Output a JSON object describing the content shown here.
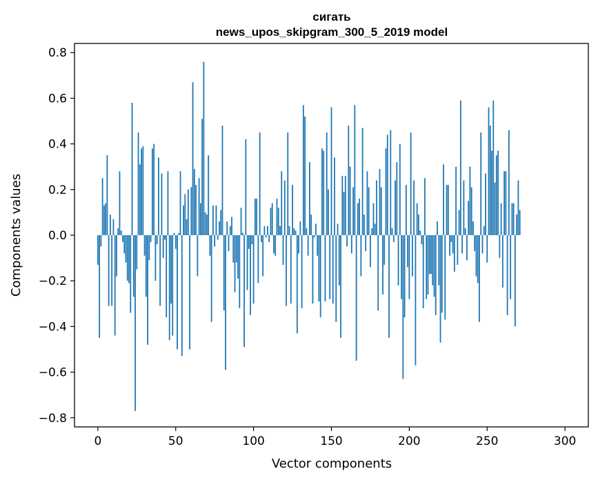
{
  "chart_data": {
    "type": "bar",
    "title": "сигать",
    "subtitle": "news_upos_skipgram_300_5_2019 model",
    "xlabel": "Vector components",
    "ylabel": "Components values",
    "xlim": [
      -15,
      315
    ],
    "ylim": [
      -0.84,
      0.84
    ],
    "xticks": [
      0,
      50,
      100,
      150,
      200,
      250,
      300
    ],
    "yticks": [
      -0.8,
      -0.6,
      -0.4,
      -0.2,
      0.0,
      0.2,
      0.4,
      0.6,
      0.8
    ],
    "ytick_labels": [
      "−0.8",
      "−0.6",
      "−0.4",
      "−0.2",
      "0.0",
      "0.2",
      "0.4",
      "0.6",
      "0.8"
    ],
    "grid": false,
    "bar_color": "#1f77b4",
    "x_start": 0,
    "values": [
      -0.13,
      -0.45,
      -0.05,
      0.25,
      0.13,
      0.14,
      0.35,
      -0.31,
      0.09,
      -0.31,
      0.07,
      -0.44,
      -0.18,
      0.03,
      0.28,
      0.02,
      -0.03,
      -0.08,
      -0.12,
      -0.2,
      -0.21,
      -0.34,
      0.58,
      -0.27,
      -0.77,
      -0.15,
      0.45,
      0.31,
      0.38,
      0.39,
      -0.09,
      -0.27,
      -0.48,
      -0.11,
      -0.03,
      0.38,
      0.4,
      -0.2,
      -0.04,
      0.34,
      -0.31,
      0.27,
      -0.1,
      -0.02,
      -0.36,
      0.28,
      -0.46,
      -0.3,
      -0.44,
      0.01,
      -0.06,
      -0.5,
      0.01,
      0.28,
      -0.53,
      0.13,
      0.18,
      0.07,
      0.2,
      -0.5,
      0.21,
      0.67,
      0.29,
      0.22,
      -0.18,
      0.25,
      0.14,
      0.51,
      0.76,
      0.1,
      0.09,
      0.35,
      -0.09,
      -0.38,
      0.13,
      -0.05,
      0.13,
      -0.02,
      0.06,
      0.11,
      0.48,
      -0.33,
      -0.59,
      0.06,
      -0.07,
      0.04,
      0.08,
      -0.12,
      -0.25,
      -0.12,
      -0.19,
      -0.32,
      0.12,
      0.01,
      -0.49,
      0.42,
      -0.24,
      -0.06,
      -0.35,
      -0.04,
      -0.3,
      0.16,
      0.16,
      -0.21,
      0.45,
      -0.03,
      -0.18,
      0.04,
      -0.01,
      0.04,
      -0.03,
      0.12,
      0.14,
      -0.08,
      -0.09,
      0.16,
      0.12,
      0.04,
      0.28,
      -0.13,
      0.24,
      -0.31,
      0.45,
      0.04,
      -0.3,
      0.22,
      0.03,
      0.02,
      -0.43,
      -0.08,
      0.06,
      -0.32,
      0.57,
      0.52,
      0.03,
      -0.09,
      0.32,
      0.09,
      -0.3,
      -0.01,
      0.05,
      -0.09,
      -0.29,
      -0.36,
      0.38,
      0.37,
      -0.29,
      0.45,
      0.2,
      -0.28,
      0.56,
      -0.3,
      0.34,
      -0.38,
      0.05,
      -0.22,
      -0.45,
      0.26,
      0.19,
      0.26,
      -0.05,
      0.48,
      0.3,
      -0.08,
      0.21,
      0.57,
      -0.55,
      0.14,
      0.16,
      -0.18,
      0.47,
      0.09,
      -0.07,
      0.28,
      0.21,
      -0.14,
      0.03,
      0.14,
      0.05,
      0.24,
      -0.33,
      0.29,
      0.21,
      -0.26,
      -0.13,
      0.38,
      0.44,
      -0.45,
      0.46,
      0.03,
      -0.03,
      0.24,
      0.32,
      -0.22,
      0.4,
      -0.28,
      -0.63,
      -0.36,
      0.22,
      -0.14,
      -0.28,
      0.45,
      -0.18,
      0.24,
      -0.57,
      0.14,
      0.09,
      0.02,
      -0.04,
      -0.32,
      0.25,
      -0.28,
      -0.26,
      -0.17,
      -0.17,
      -0.22,
      -0.27,
      -0.35,
      0.06,
      -0.22,
      -0.47,
      -0.34,
      0.31,
      -0.37,
      0.22,
      0.22,
      -0.09,
      -0.03,
      -0.08,
      -0.16,
      0.3,
      -0.13,
      0.11,
      0.59,
      -0.08,
      0.24,
      0.03,
      -0.11,
      0.15,
      0.3,
      0.21,
      0.06,
      -0.07,
      -0.18,
      -0.21,
      -0.38,
      0.45,
      -0.08,
      0.04,
      0.27,
      -0.12,
      0.56,
      0.48,
      0.37,
      0.59,
      0.23,
      0.35,
      0.37,
      -0.1,
      0.14,
      -0.23,
      0.28,
      0.28,
      -0.35,
      0.46,
      -0.28,
      0.14,
      0.14,
      -0.4,
      0.09,
      0.24,
      0.11
    ]
  }
}
